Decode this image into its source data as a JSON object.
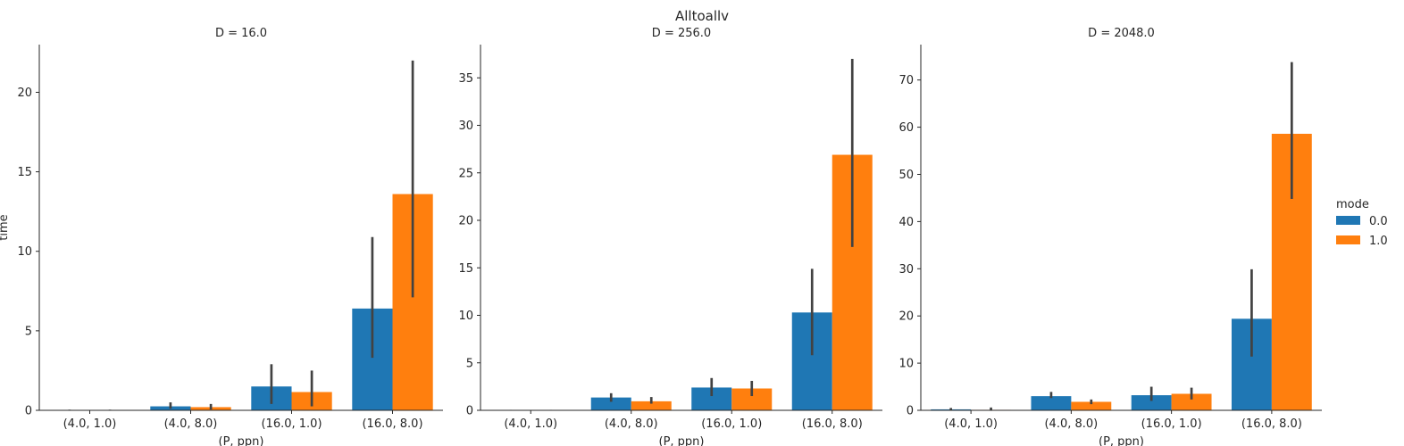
{
  "title": "Alltoallv",
  "legend": {
    "title": "mode",
    "placement": "right",
    "entries": [
      {
        "label": "0.0",
        "color": "#1f77b4"
      },
      {
        "label": "1.0",
        "color": "#ff7f0e"
      }
    ]
  },
  "chart_data": [
    {
      "type": "bar",
      "title": "D = 16.0",
      "xlabel": "(P, ppn)",
      "ylabel": "time",
      "categories": [
        "(4.0, 1.0)",
        "(4.0, 8.0)",
        "(16.0, 1.0)",
        "(16.0, 8.0)"
      ],
      "ylim": [
        0,
        23
      ],
      "yticks": [
        0,
        5,
        10,
        15,
        20
      ],
      "series": [
        {
          "name": "0.0",
          "values": [
            0.02,
            0.25,
            1.5,
            6.4
          ],
          "ci_low": [
            0.0,
            0.1,
            0.4,
            3.3
          ],
          "ci_high": [
            0.04,
            0.5,
            2.9,
            10.9
          ]
        },
        {
          "name": "1.0",
          "values": [
            0.02,
            0.2,
            1.15,
            13.6
          ],
          "ci_low": [
            0.0,
            0.05,
            0.25,
            7.1
          ],
          "ci_high": [
            0.04,
            0.4,
            2.5,
            22.0
          ]
        }
      ]
    },
    {
      "type": "bar",
      "title": "D = 256.0",
      "xlabel": "(P, ppn)",
      "ylabel": "",
      "categories": [
        "(4.0, 1.0)",
        "(4.0, 8.0)",
        "(16.0, 1.0)",
        "(16.0, 8.0)"
      ],
      "ylim": [
        0,
        38.5
      ],
      "yticks": [
        0,
        5,
        10,
        15,
        20,
        25,
        30,
        35
      ],
      "series": [
        {
          "name": "0.0",
          "values": [
            0.02,
            1.35,
            2.4,
            10.3
          ],
          "ci_low": [
            0.0,
            0.9,
            1.5,
            5.8
          ],
          "ci_high": [
            0.05,
            1.8,
            3.4,
            14.9
          ]
        },
        {
          "name": "1.0",
          "values": [
            0.02,
            0.95,
            2.3,
            26.9
          ],
          "ci_low": [
            0.0,
            0.7,
            1.5,
            17.2
          ],
          "ci_high": [
            0.05,
            1.4,
            3.1,
            37.0
          ]
        }
      ]
    },
    {
      "type": "bar",
      "title": "D = 2048.0",
      "xlabel": "(P, ppn)",
      "ylabel": "",
      "categories": [
        "(4.0, 1.0)",
        "(4.0, 8.0)",
        "(16.0, 1.0)",
        "(16.0, 8.0)"
      ],
      "ylim": [
        0,
        77.5
      ],
      "yticks": [
        0,
        10,
        20,
        30,
        40,
        50,
        60,
        70
      ],
      "series": [
        {
          "name": "0.0",
          "values": [
            0.2,
            3.0,
            3.2,
            19.4
          ],
          "ci_low": [
            0.05,
            2.6,
            2.0,
            11.4
          ],
          "ci_high": [
            0.5,
            3.9,
            5.0,
            29.9
          ]
        },
        {
          "name": "1.0",
          "values": [
            0.1,
            1.8,
            3.5,
            58.6
          ],
          "ci_low": [
            0.0,
            1.3,
            2.3,
            44.8
          ],
          "ci_high": [
            0.6,
            2.3,
            4.8,
            73.8
          ]
        }
      ]
    }
  ]
}
